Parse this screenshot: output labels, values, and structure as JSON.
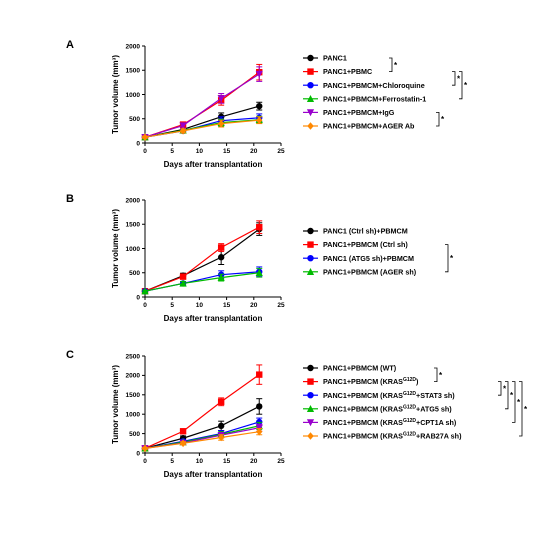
{
  "chart_data": [
    {
      "type": "line",
      "panel": "A",
      "xlabel": "Days after transplantation",
      "ylabel": "Tumor volume (mm³)",
      "xlim": [
        0,
        25
      ],
      "ylim": [
        0,
        2000
      ],
      "xticks": [
        0,
        5,
        10,
        15,
        20,
        25
      ],
      "yticks": [
        0,
        500,
        1000,
        1500,
        2000
      ],
      "x": [
        0,
        7,
        14,
        21
      ],
      "series": [
        {
          "name": "PANC1",
          "color": "#000000",
          "marker": "circle",
          "values": [
            120,
            280,
            540,
            760
          ],
          "error": [
            20,
            40,
            80,
            80
          ]
        },
        {
          "name": "PANC1+PBMC",
          "color": "#ff0000",
          "marker": "square",
          "values": [
            120,
            380,
            880,
            1460
          ],
          "error": [
            20,
            50,
            100,
            160
          ]
        },
        {
          "name": "PANC1+PBMCM+Chloroquine",
          "color": "#0000ff",
          "marker": "circle",
          "values": [
            120,
            250,
            460,
            520
          ],
          "error": [
            20,
            40,
            80,
            80
          ]
        },
        {
          "name": "PANC1+PBMCM+Ferrostatin-1",
          "color": "#00bb00",
          "marker": "triangle-up",
          "values": [
            120,
            260,
            420,
            480
          ],
          "error": [
            20,
            40,
            70,
            70
          ]
        },
        {
          "name": "PANC1+PBMCM+IgG",
          "color": "#9900cc",
          "marker": "triangle-down",
          "values": [
            120,
            360,
            920,
            1420
          ],
          "error": [
            20,
            50,
            100,
            150
          ]
        },
        {
          "name": "PANC1+PBMCM+AGER Ab",
          "color": "#ff8800",
          "marker": "diamond",
          "values": [
            120,
            250,
            400,
            470
          ],
          "error": [
            20,
            40,
            70,
            70
          ]
        }
      ],
      "significance": [
        "*",
        "*",
        "*",
        "*"
      ]
    },
    {
      "type": "line",
      "panel": "B",
      "xlabel": "Days after transplantation",
      "ylabel": "Tumor volume (mm³)",
      "xlim": [
        0,
        25
      ],
      "ylim": [
        0,
        2000
      ],
      "xticks": [
        0,
        5,
        10,
        15,
        20,
        25
      ],
      "yticks": [
        0,
        500,
        1000,
        1500,
        2000
      ],
      "x": [
        0,
        7,
        14,
        21
      ],
      "series": [
        {
          "name": "PANC1 (Ctrl sh)+PBMCM",
          "color": "#000000",
          "marker": "circle",
          "values": [
            120,
            440,
            820,
            1400
          ],
          "error": [
            20,
            50,
            150,
            130
          ]
        },
        {
          "name": "PANC1+PBMCM (Ctrl sh)",
          "color": "#ff0000",
          "marker": "square",
          "values": [
            120,
            420,
            1020,
            1440
          ],
          "error": [
            20,
            50,
            80,
            130
          ]
        },
        {
          "name": "PANC1 (ATG5 sh)+PBMCM",
          "color": "#0000ff",
          "marker": "circle",
          "values": [
            120,
            280,
            460,
            520
          ],
          "error": [
            20,
            40,
            80,
            100
          ]
        },
        {
          "name": "PANC1+PBMCM (AGER sh)",
          "color": "#00bb00",
          "marker": "triangle-up",
          "values": [
            120,
            280,
            400,
            500
          ],
          "error": [
            20,
            40,
            70,
            90
          ]
        }
      ],
      "significance": [
        "*"
      ]
    },
    {
      "type": "line",
      "panel": "C",
      "xlabel": "Days after transplantation",
      "ylabel": "Tumor volume (mm³)",
      "xlim": [
        0,
        25
      ],
      "ylim": [
        0,
        2500
      ],
      "xticks": [
        0,
        5,
        10,
        15,
        20,
        25
      ],
      "yticks": [
        0,
        500,
        1000,
        1500,
        2000,
        2500
      ],
      "x": [
        0,
        7,
        14,
        21
      ],
      "series": [
        {
          "name": "PANC1+PBMCM (WT)",
          "color": "#000000",
          "marker": "circle",
          "values": [
            120,
            380,
            700,
            1200
          ],
          "error": [
            20,
            60,
            120,
            200
          ]
        },
        {
          "name": "PANC1+PBMCM (KRAS G12D)",
          "color": "#ff0000",
          "marker": "square",
          "values": [
            120,
            560,
            1320,
            2020
          ],
          "error": [
            20,
            60,
            100,
            250
          ]
        },
        {
          "name": "PANC1+PBMCM (KRAS G12D+STAT3 sh)",
          "color": "#0000ff",
          "marker": "circle",
          "values": [
            120,
            300,
            500,
            800
          ],
          "error": [
            20,
            40,
            80,
            100
          ]
        },
        {
          "name": "PANC1+PBMCM (KRAS G12D+ATG5 sh)",
          "color": "#00bb00",
          "marker": "triangle-up",
          "values": [
            120,
            280,
            480,
            700
          ],
          "error": [
            20,
            40,
            70,
            90
          ]
        },
        {
          "name": "PANC1+PBMCM (KRAS G12D+CPT1A sh)",
          "color": "#9900cc",
          "marker": "triangle-down",
          "values": [
            120,
            260,
            460,
            650
          ],
          "error": [
            20,
            40,
            70,
            90
          ]
        },
        {
          "name": "PANC1+PBMCM (KRAS G12D+RAB27A sh)",
          "color": "#ff8800",
          "marker": "diamond",
          "values": [
            120,
            250,
            400,
            550
          ],
          "error": [
            20,
            40,
            70,
            80
          ]
        }
      ],
      "significance": [
        "*",
        "*",
        "*",
        "*",
        "*"
      ]
    }
  ]
}
